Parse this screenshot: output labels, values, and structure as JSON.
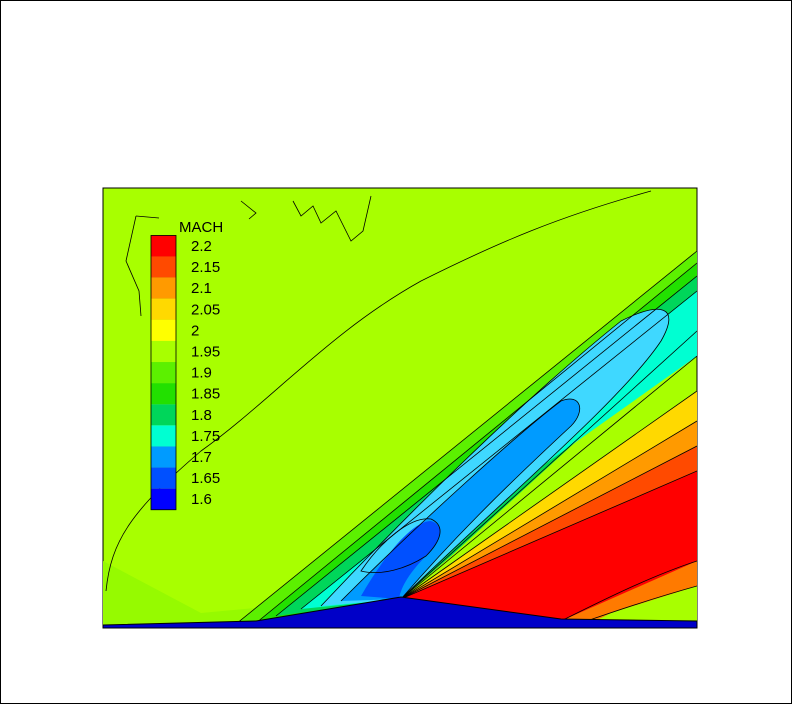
{
  "chart_data": {
    "type": "heatmap",
    "title": "",
    "colorbar": {
      "title": "MACH",
      "placement": "top-left, inside plot",
      "levels": [
        2.2,
        2.15,
        2.1,
        2.05,
        2,
        1.95,
        1.9,
        1.85,
        1.8,
        1.75,
        1.7,
        1.65,
        1.6
      ],
      "labels": [
        "2.2",
        "2.15",
        "2.1",
        "2.05",
        "2",
        "1.95",
        "1.9",
        "1.85",
        "1.8",
        "1.75",
        "1.7",
        "1.65",
        "1.6"
      ],
      "colors": [
        "#ff0000",
        "#ff4a00",
        "#ff9a00",
        "#ffd900",
        "#ffff00",
        "#a8ff00",
        "#5cf000",
        "#22e000",
        "#00d65a",
        "#00ffd2",
        "#009bff",
        "#0050ff",
        "#0000ff"
      ]
    },
    "field_description": "Mach number contours over a wedge ramp (supersonic flow, compression then expansion)",
    "freestream_mach": 1.95,
    "min_mach": 1.6,
    "max_mach": 2.2,
    "axes_visible": false,
    "grid": false
  }
}
